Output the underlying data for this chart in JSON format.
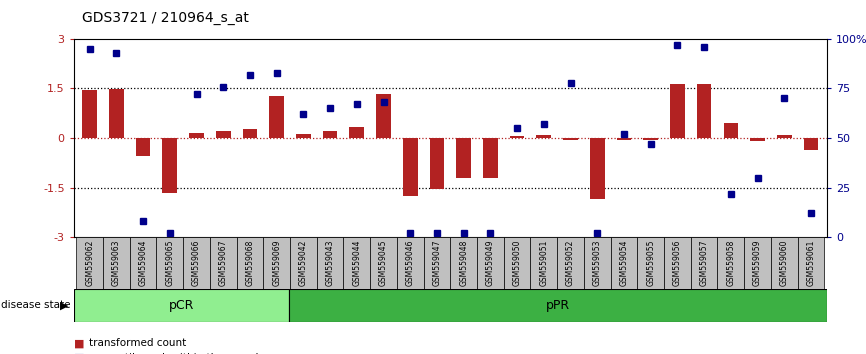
{
  "title": "GDS3721 / 210964_s_at",
  "samples": [
    "GSM559062",
    "GSM559063",
    "GSM559064",
    "GSM559065",
    "GSM559066",
    "GSM559067",
    "GSM559068",
    "GSM559069",
    "GSM559042",
    "GSM559043",
    "GSM559044",
    "GSM559045",
    "GSM559046",
    "GSM559047",
    "GSM559048",
    "GSM559049",
    "GSM559050",
    "GSM559051",
    "GSM559052",
    "GSM559053",
    "GSM559054",
    "GSM559055",
    "GSM559056",
    "GSM559057",
    "GSM559058",
    "GSM559059",
    "GSM559060",
    "GSM559061"
  ],
  "bar_values": [
    1.45,
    1.48,
    -0.55,
    -1.65,
    0.15,
    0.22,
    0.28,
    1.28,
    0.13,
    0.22,
    0.32,
    1.32,
    -1.75,
    -1.55,
    -1.2,
    -1.2,
    0.05,
    0.08,
    -0.05,
    -1.85,
    -0.05,
    -0.05,
    1.65,
    1.65,
    0.45,
    -0.08,
    0.08,
    -0.35
  ],
  "percentile_values": [
    95,
    93,
    8,
    2,
    72,
    76,
    82,
    83,
    62,
    65,
    67,
    68,
    2,
    2,
    2,
    2,
    55,
    57,
    78,
    2,
    52,
    47,
    97,
    96,
    22,
    30,
    70,
    12
  ],
  "n_pCR": 8,
  "ylim_left": [
    -3,
    3
  ],
  "ylim_right": [
    0,
    100
  ],
  "yticks_left": [
    -3,
    -1.5,
    0,
    1.5,
    3
  ],
  "yticks_right": [
    0,
    25,
    50,
    75,
    100
  ],
  "ytick_labels_right": [
    "0",
    "25",
    "50",
    "75",
    "100%"
  ],
  "hlines_dotted": [
    1.5,
    -1.5
  ],
  "hline_red": 0,
  "bar_color": "#B22222",
  "dot_color": "#00008B",
  "pCR_color": "#90EE90",
  "pPR_color": "#3CB043",
  "label_bg_color": "#C0C0C0",
  "fig_width": 8.66,
  "fig_height": 3.54,
  "dpi": 100
}
